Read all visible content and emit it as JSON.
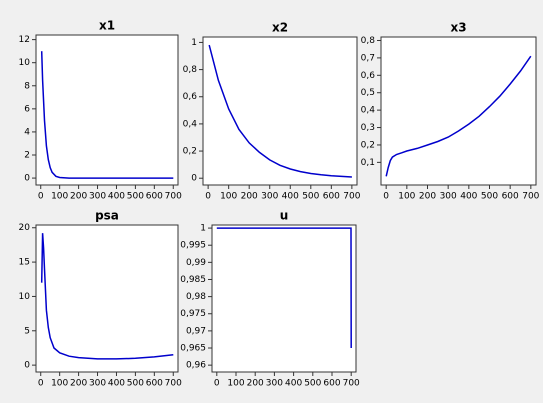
{
  "chart_data": [
    {
      "type": "line",
      "title": "x1",
      "color": "#0000cc",
      "x": [
        5,
        10,
        20,
        30,
        40,
        50,
        60,
        80,
        100,
        150,
        200,
        300,
        400,
        500,
        600,
        700
      ],
      "values": [
        11,
        8.5,
        5,
        2.8,
        1.6,
        0.9,
        0.5,
        0.15,
        0.05,
        0,
        0,
        0,
        0,
        0,
        0,
        0
      ],
      "xlim": [
        -25,
        725
      ],
      "ylim": [
        -0.6,
        12.4
      ],
      "xticks": [
        0,
        100,
        200,
        300,
        400,
        500,
        600,
        700
      ],
      "yticks": [
        0,
        2,
        4,
        6,
        8,
        10,
        12
      ]
    },
    {
      "type": "line",
      "title": "x2",
      "color": "#0000cc",
      "x": [
        5,
        50,
        100,
        150,
        200,
        250,
        300,
        350,
        400,
        450,
        500,
        550,
        600,
        650,
        700
      ],
      "values": [
        0.98,
        0.72,
        0.51,
        0.36,
        0.26,
        0.19,
        0.135,
        0.095,
        0.068,
        0.049,
        0.035,
        0.025,
        0.018,
        0.013,
        0.009
      ],
      "xlim": [
        -25,
        725
      ],
      "ylim": [
        -0.05,
        1.04
      ],
      "xticks": [
        0,
        100,
        200,
        300,
        400,
        500,
        600,
        700
      ],
      "yticks": [
        0,
        {
          "value": 0.2,
          "label": "0,2"
        },
        {
          "value": 0.4,
          "label": "0,4"
        },
        {
          "value": 0.6,
          "label": "0,6"
        },
        {
          "value": 0.8,
          "label": "0,8"
        },
        1
      ]
    },
    {
      "type": "line",
      "title": "x3",
      "color": "#0000cc",
      "x": [
        0,
        10,
        20,
        30,
        50,
        75,
        100,
        150,
        200,
        250,
        300,
        350,
        400,
        450,
        500,
        550,
        600,
        650,
        700
      ],
      "values": [
        0.02,
        0.07,
        0.11,
        0.13,
        0.145,
        0.155,
        0.165,
        0.18,
        0.2,
        0.22,
        0.245,
        0.28,
        0.32,
        0.365,
        0.42,
        0.48,
        0.55,
        0.625,
        0.71
      ],
      "xlim": [
        -25,
        725
      ],
      "ylim": [
        -0.03,
        0.82
      ],
      "xticks": [
        0,
        100,
        200,
        300,
        400,
        500,
        600,
        700
      ],
      "yticks": [
        {
          "value": 0.1,
          "label": "0,1"
        },
        {
          "value": 0.2,
          "label": "0,2"
        },
        {
          "value": 0.3,
          "label": "0,3"
        },
        {
          "value": 0.4,
          "label": "0,4"
        },
        {
          "value": 0.5,
          "label": "0,5"
        },
        {
          "value": 0.6,
          "label": "0,6"
        },
        {
          "value": 0.7,
          "label": "0,7"
        },
        {
          "value": 0.8,
          "label": "0,8"
        }
      ]
    },
    {
      "type": "line",
      "title": "psa",
      "color": "#0000cc",
      "x": [
        5,
        10,
        15,
        20,
        30,
        40,
        50,
        70,
        100,
        150,
        200,
        300,
        400,
        500,
        600,
        700
      ],
      "values": [
        12,
        19.2,
        17,
        14,
        8,
        5.5,
        4,
        2.5,
        1.8,
        1.3,
        1.1,
        0.9,
        0.9,
        1.0,
        1.2,
        1.5
      ],
      "xlim": [
        -25,
        725
      ],
      "ylim": [
        -1,
        20.4
      ],
      "xticks": [
        0,
        100,
        200,
        300,
        400,
        500,
        600,
        700
      ],
      "yticks": [
        0,
        5,
        10,
        15,
        20
      ]
    },
    {
      "type": "line",
      "title": "u",
      "color": "#0000cc",
      "x": [
        0,
        699,
        700
      ],
      "values": [
        1,
        1,
        0.965
      ],
      "xlim": [
        -25,
        725
      ],
      "ylim": [
        0.958,
        1.0009
      ],
      "xticks": [
        0,
        100,
        200,
        300,
        400,
        500,
        600,
        700
      ],
      "yticks": [
        {
          "value": 0.96,
          "label": "0,96"
        },
        {
          "value": 0.965,
          "label": "0,965"
        },
        {
          "value": 0.97,
          "label": "0,97"
        },
        {
          "value": 0.975,
          "label": "0,975"
        },
        {
          "value": 0.98,
          "label": "0,98"
        },
        {
          "value": 0.985,
          "label": "0,985"
        },
        {
          "value": 0.99,
          "label": "0,99"
        },
        {
          "value": 0.995,
          "label": "0,995"
        },
        1
      ]
    }
  ]
}
